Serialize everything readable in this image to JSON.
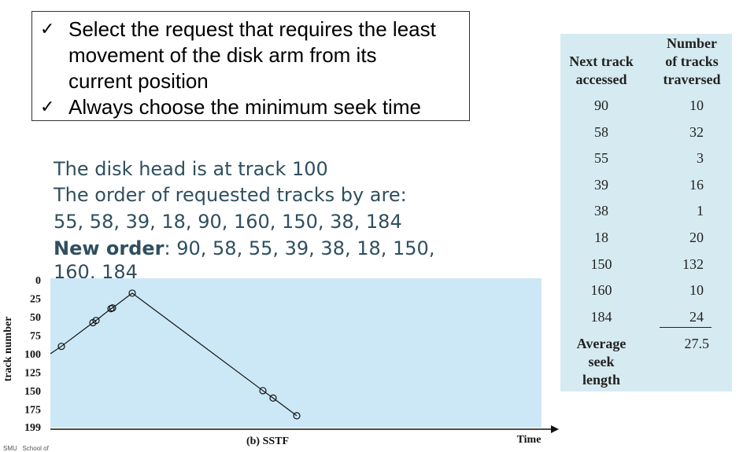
{
  "bullets": [
    {
      "lines": [
        "Select the request that requires the least",
        "movement of the disk arm from its",
        "current position"
      ]
    },
    {
      "lines": [
        "Always choose the minimum seek time"
      ]
    }
  ],
  "check_symbol": "✓",
  "desc": {
    "line1": "The disk head is at track 100",
    "line2": "The order of requested tracks by are:",
    "line3": "55, 58, 39, 18, 90, 160, 150, 38, 184",
    "new_order_label": "New order",
    "new_order_rest": ": 90, 58, 55, 39, 38, 18, 150,",
    "line5": "160, 184"
  },
  "table": {
    "col1_header": [
      "Next track",
      "accessed"
    ],
    "col2_header": [
      "Number",
      "of tracks",
      "traversed"
    ],
    "rows": [
      [
        "90",
        "10"
      ],
      [
        "58",
        "32"
      ],
      [
        "55",
        "3"
      ],
      [
        "39",
        "16"
      ],
      [
        "38",
        "1"
      ],
      [
        "18",
        "20"
      ],
      [
        "150",
        "132"
      ],
      [
        "160",
        "10"
      ],
      [
        "184",
        "24"
      ]
    ],
    "avg_label": [
      "Average",
      "seek",
      "length"
    ],
    "avg_value": "27.5",
    "bg_color": "#d6ebf1"
  },
  "chart_data": {
    "type": "line",
    "title": "(b) SSTF",
    "xlabel": "Time",
    "ylabel": "track number",
    "yticks": [
      0,
      25,
      50,
      75,
      100,
      125,
      150,
      175,
      199
    ],
    "ylim": [
      0,
      199
    ],
    "y_inverted": true,
    "start_track": 100,
    "sequence": [
      90,
      58,
      55,
      39,
      38,
      18,
      150,
      160,
      184
    ],
    "plot_bg": "#cce8f6"
  },
  "logo_text": [
    "SMU",
    "School of"
  ]
}
